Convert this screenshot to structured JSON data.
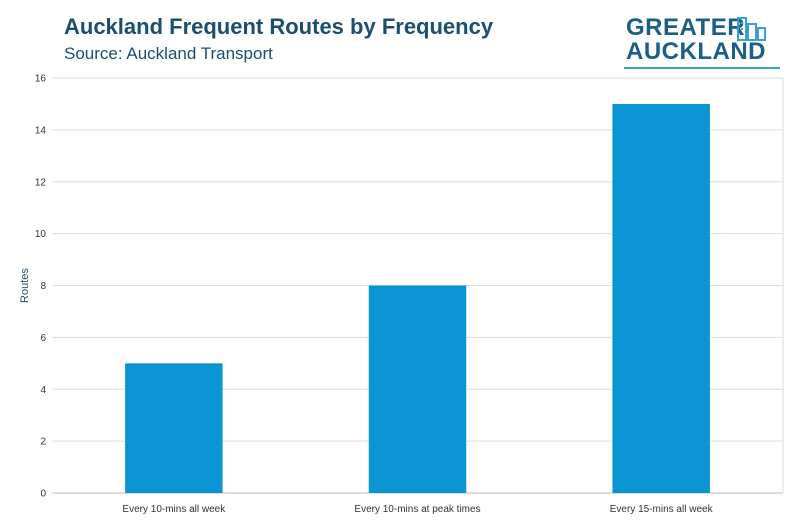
{
  "header": {
    "title": "Auckland Frequent Routes by Frequency",
    "subtitle": "Source: Auckland Transport"
  },
  "logo": {
    "line1": "GREATER",
    "line2": "AUCKLAND"
  },
  "colors": {
    "bar": "#0a94d4",
    "title": "#1b4f6e",
    "grid": "#dddddd",
    "logo": "#1b5e86"
  },
  "chart_data": {
    "type": "bar",
    "title": "Auckland Frequent Routes by Frequency",
    "subtitle": "Source: Auckland Transport",
    "xlabel": "",
    "ylabel": "Routes",
    "categories": [
      "Every 10-mins all week",
      "Every 10-mins at peak times",
      "Every 15-mins all week"
    ],
    "values": [
      5,
      8,
      15
    ],
    "ylim": [
      0,
      16
    ],
    "yticks": [
      0,
      2,
      4,
      6,
      8,
      10,
      12,
      14,
      16
    ],
    "grid": true,
    "legend": "none"
  }
}
